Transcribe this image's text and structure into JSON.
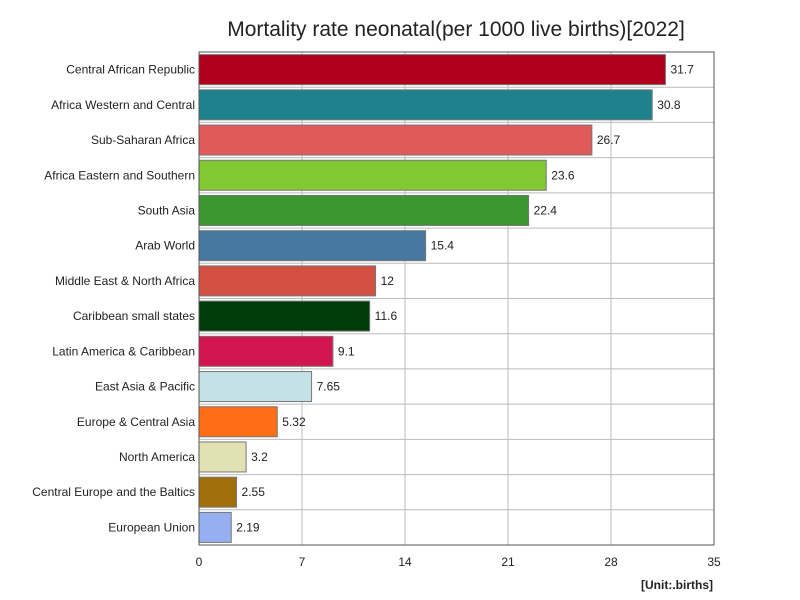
{
  "chart_data": {
    "type": "bar",
    "orientation": "horizontal",
    "title": "Mortality rate neonatal(per 1000 live births)[2022]",
    "unit_label": "[Unit:.births]",
    "categories": [
      "Central African Republic",
      "Africa Western and Central",
      "Sub-Saharan Africa",
      "Africa Eastern and Southern",
      "South Asia",
      "Arab World",
      "Middle East & North Africa",
      "Caribbean small states",
      "Latin America & Caribbean",
      "East Asia & Pacific",
      "Europe & Central Asia",
      "North America",
      "Central Europe and the Baltics",
      "European Union"
    ],
    "values": [
      31.7,
      30.8,
      26.7,
      23.6,
      22.4,
      15.4,
      12,
      11.6,
      9.1,
      7.65,
      5.32,
      3.2,
      2.55,
      2.19
    ],
    "value_labels": [
      "31.7",
      "30.8",
      "26.7",
      "23.6",
      "22.4",
      "15.4",
      "12",
      "11.6",
      "9.1",
      "7.65",
      "5.32",
      "3.2",
      "2.55",
      "2.19"
    ],
    "colors": [
      "#b0001e",
      "#1e828c",
      "#e05a5a",
      "#82c832",
      "#3c9632",
      "#4678a0",
      "#d25041",
      "#003c0a",
      "#d21450",
      "#c3e1e6",
      "#ff6e14",
      "#e1e1b4",
      "#a06e0a",
      "#96aff0"
    ],
    "xlim": [
      0,
      35
    ],
    "xticks": [
      0,
      7,
      14,
      21,
      28,
      35
    ],
    "xtick_labels": [
      "0",
      "7",
      "14",
      "21",
      "28",
      "35"
    ],
    "grid": true,
    "xlabel": "",
    "ylabel": ""
  }
}
